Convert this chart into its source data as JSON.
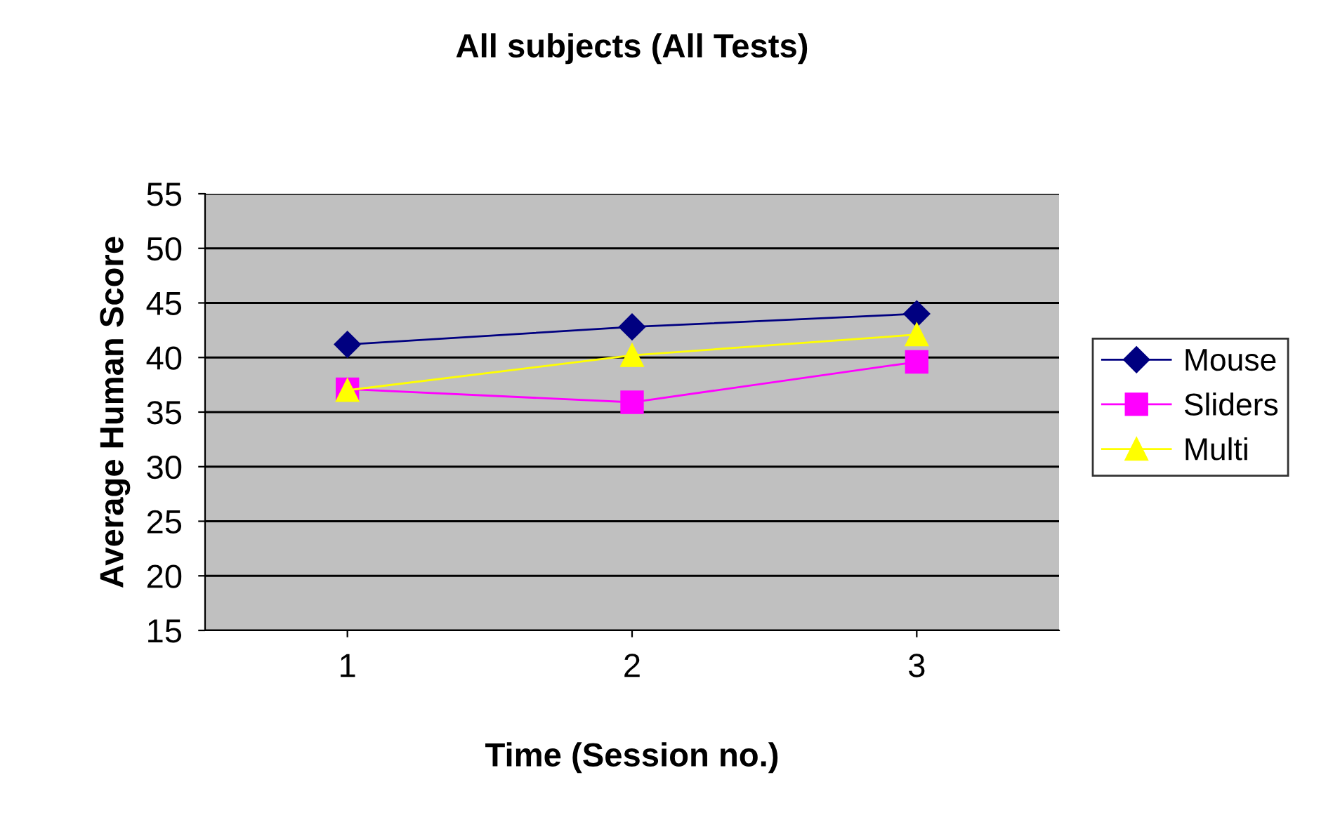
{
  "chart_data": {
    "type": "line",
    "title": "All subjects (All Tests)",
    "xlabel": "Time (Session no.)",
    "ylabel": "Average Human Score",
    "categories": [
      "1",
      "2",
      "3"
    ],
    "series": [
      {
        "name": "Mouse",
        "color": "#000080",
        "values": [
          41.2,
          42.8,
          44.0
        ],
        "marker": "diamond"
      },
      {
        "name": "Sliders",
        "color": "#ff00ff",
        "values": [
          37.1,
          35.9,
          39.6
        ],
        "marker": "square"
      },
      {
        "name": "Multi",
        "color": "#ffff00",
        "values": [
          37.0,
          40.2,
          42.1
        ],
        "marker": "triangle"
      }
    ],
    "ylim": [
      15,
      55
    ],
    "yticks": [
      15,
      20,
      25,
      30,
      35,
      40,
      45,
      50,
      55
    ],
    "grid": "y",
    "legend": "right",
    "line_style": "solid"
  }
}
